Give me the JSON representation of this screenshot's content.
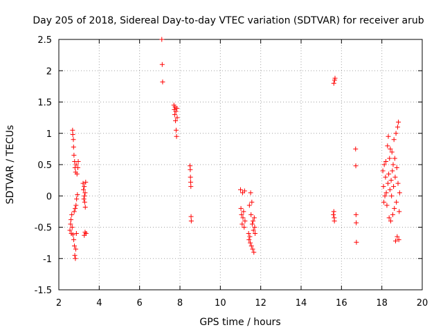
{
  "chart_data": {
    "type": "scatter",
    "title": "Day 205 of 2018, Sidereal Day-to-day VTEC variation (SDTVAR) for receiver arub",
    "xlabel": "GPS time / hours",
    "ylabel": "SDTVAR / TECUs",
    "xlim": [
      2,
      20
    ],
    "ylim": [
      -1.5,
      2.5
    ],
    "xticks": [
      2,
      4,
      6,
      8,
      10,
      12,
      14,
      16,
      18,
      20
    ],
    "yticks": [
      -1.5,
      -1,
      -0.5,
      0,
      0.5,
      1,
      1.5,
      2,
      2.5
    ],
    "xtick_labels": [
      "2",
      "4",
      "6",
      "8",
      "10",
      "12",
      "14",
      "16",
      "18",
      "20"
    ],
    "ytick_labels": [
      "-1.5",
      "-1",
      "-0.5",
      "0",
      "0.5",
      "1",
      "1.5",
      "2",
      "2.5"
    ],
    "grid": true,
    "marker": "+",
    "color": "#ff0000",
    "series": [
      {
        "name": "SDTVAR",
        "points": [
          [
            2.55,
            -0.55
          ],
          [
            2.58,
            -0.45
          ],
          [
            2.6,
            -0.38
          ],
          [
            2.62,
            -0.6
          ],
          [
            2.64,
            -0.3
          ],
          [
            2.66,
            -0.5
          ],
          [
            2.68,
            1.05
          ],
          [
            2.69,
            0.98
          ],
          [
            2.7,
            -0.62
          ],
          [
            2.72,
            0.9
          ],
          [
            2.73,
            0.78
          ],
          [
            2.74,
            -0.7
          ],
          [
            2.75,
            0.65
          ],
          [
            2.76,
            -0.25
          ],
          [
            2.77,
            -0.8
          ],
          [
            2.78,
            0.55
          ],
          [
            2.79,
            -0.95
          ],
          [
            2.8,
            0.45
          ],
          [
            2.81,
            -0.2
          ],
          [
            2.82,
            -1.0
          ],
          [
            2.83,
            0.38
          ],
          [
            2.84,
            -0.85
          ],
          [
            2.85,
            -0.15
          ],
          [
            2.86,
            0.5
          ],
          [
            2.87,
            -0.6
          ],
          [
            2.88,
            -0.05
          ],
          [
            2.9,
            0.35
          ],
          [
            2.92,
            0.02
          ],
          [
            2.94,
            0.45
          ],
          [
            2.96,
            0.55
          ],
          [
            3.2,
            0.2
          ],
          [
            3.22,
            0.1
          ],
          [
            3.24,
            -0.05
          ],
          [
            3.26,
            0.15
          ],
          [
            3.27,
            0.0
          ],
          [
            3.28,
            -0.1
          ],
          [
            3.3,
            0.05
          ],
          [
            3.31,
            -0.18
          ],
          [
            3.33,
            0.22
          ],
          [
            3.35,
            -0.6
          ],
          [
            3.26,
            -0.63
          ],
          [
            3.3,
            -0.58
          ],
          [
            7.1,
            2.5
          ],
          [
            7.12,
            2.1
          ],
          [
            7.14,
            1.82
          ],
          [
            7.7,
            1.45
          ],
          [
            7.72,
            1.38
          ],
          [
            7.74,
            1.3
          ],
          [
            7.76,
            1.42
          ],
          [
            7.78,
            1.2
          ],
          [
            7.8,
            1.35
          ],
          [
            7.81,
            1.05
          ],
          [
            7.83,
            0.95
          ],
          [
            7.85,
            1.4
          ],
          [
            7.86,
            1.25
          ],
          [
            8.5,
            0.48
          ],
          [
            8.51,
            0.42
          ],
          [
            8.52,
            0.3
          ],
          [
            8.53,
            0.22
          ],
          [
            8.54,
            0.15
          ],
          [
            8.55,
            -0.33
          ],
          [
            8.56,
            -0.4
          ],
          [
            11.0,
            0.1
          ],
          [
            11.02,
            -0.2
          ],
          [
            11.05,
            -0.3
          ],
          [
            11.08,
            -0.45
          ],
          [
            11.1,
            0.05
          ],
          [
            11.12,
            -0.35
          ],
          [
            11.15,
            -0.25
          ],
          [
            11.18,
            -0.5
          ],
          [
            11.2,
            0.08
          ],
          [
            11.22,
            -0.4
          ],
          [
            11.4,
            -0.6
          ],
          [
            11.42,
            -0.7
          ],
          [
            11.44,
            -0.15
          ],
          [
            11.46,
            -0.65
          ],
          [
            11.48,
            -0.75
          ],
          [
            11.5,
            0.05
          ],
          [
            11.52,
            -0.3
          ],
          [
            11.54,
            -0.8
          ],
          [
            11.56,
            -0.1
          ],
          [
            11.58,
            -0.45
          ],
          [
            11.6,
            -0.85
          ],
          [
            11.62,
            -0.4
          ],
          [
            11.64,
            -0.55
          ],
          [
            11.66,
            -0.9
          ],
          [
            11.68,
            -0.35
          ],
          [
            11.7,
            -0.5
          ],
          [
            11.72,
            -0.6
          ],
          [
            15.6,
            -0.3
          ],
          [
            15.62,
            -0.25
          ],
          [
            15.64,
            -0.35
          ],
          [
            15.65,
            -0.4
          ],
          [
            15.62,
            1.8
          ],
          [
            15.66,
            1.85
          ],
          [
            15.68,
            1.88
          ],
          [
            16.7,
            0.75
          ],
          [
            16.71,
            0.48
          ],
          [
            16.72,
            -0.3
          ],
          [
            16.73,
            -0.43
          ],
          [
            16.74,
            -0.74
          ],
          [
            18.05,
            0.4
          ],
          [
            18.08,
            0.15
          ],
          [
            18.1,
            -0.1
          ],
          [
            18.12,
            0.5
          ],
          [
            18.15,
            0.0
          ],
          [
            18.18,
            0.3
          ],
          [
            18.2,
            0.55
          ],
          [
            18.22,
            0.05
          ],
          [
            18.25,
            -0.15
          ],
          [
            18.28,
            0.8
          ],
          [
            18.3,
            0.2
          ],
          [
            18.32,
            0.95
          ],
          [
            18.34,
            0.35
          ],
          [
            18.36,
            -0.35
          ],
          [
            18.38,
            0.6
          ],
          [
            18.4,
            0.1
          ],
          [
            18.42,
            0.75
          ],
          [
            18.44,
            -0.4
          ],
          [
            18.46,
            0.25
          ],
          [
            18.48,
            0.0
          ],
          [
            18.5,
            0.7
          ],
          [
            18.52,
            0.4
          ],
          [
            18.54,
            -0.3
          ],
          [
            18.56,
            0.5
          ],
          [
            18.58,
            0.15
          ],
          [
            18.6,
            0.9
          ],
          [
            18.62,
            -0.2
          ],
          [
            18.64,
            0.6
          ],
          [
            18.66,
            0.3
          ],
          [
            18.68,
            -0.72
          ],
          [
            18.7,
            1.0
          ],
          [
            18.72,
            -0.1
          ],
          [
            18.74,
            0.45
          ],
          [
            18.76,
            -0.65
          ],
          [
            18.78,
            1.1
          ],
          [
            18.8,
            0.2
          ],
          [
            18.82,
            1.18
          ],
          [
            18.84,
            -0.7
          ],
          [
            18.86,
            -0.25
          ],
          [
            18.88,
            0.05
          ]
        ]
      }
    ]
  }
}
